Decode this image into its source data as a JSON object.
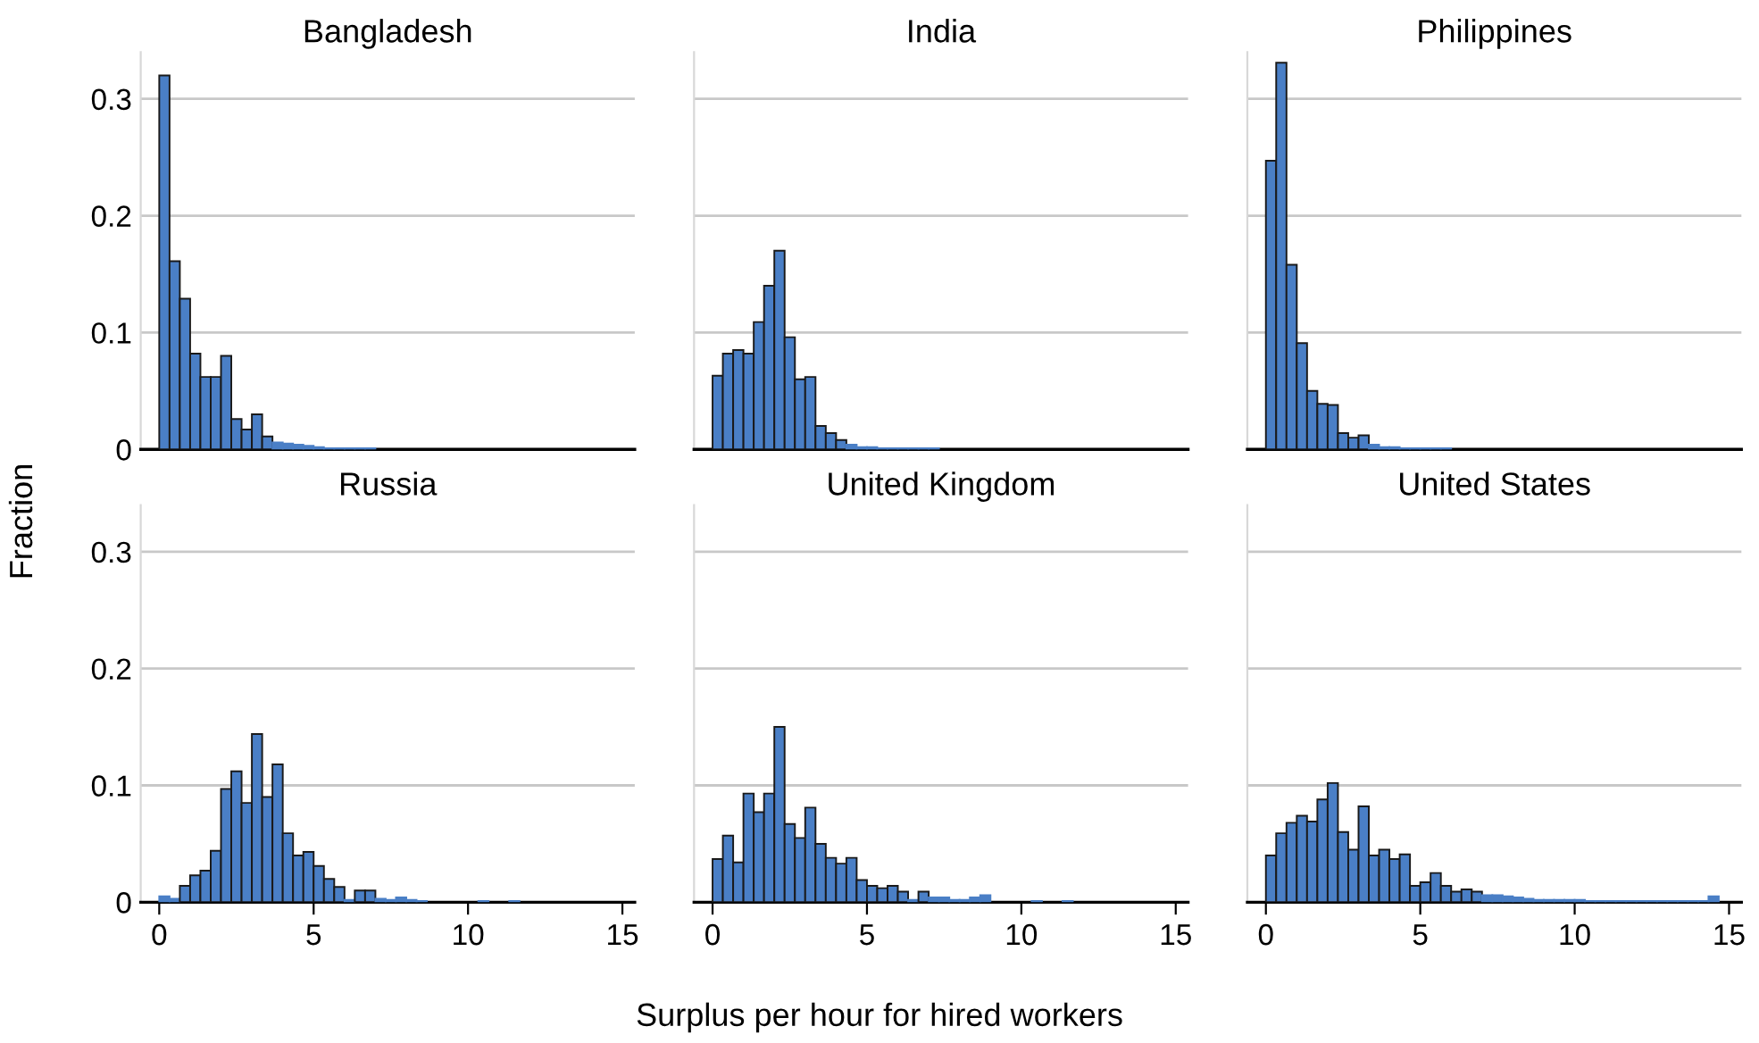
{
  "chart_data": [
    {
      "type": "histogram",
      "title": "Bangladesh",
      "ylabel": "Fraction",
      "color": "#4a7fc6",
      "grid": "y",
      "tick_labels": "y",
      "xlim": [
        -0.6,
        15.4
      ],
      "ylim": [
        0,
        0.34
      ],
      "xticks": [
        0,
        5,
        10,
        15
      ],
      "yticks": [
        0,
        0.1,
        0.2,
        0.3
      ],
      "bins": [
        0,
        0.3333,
        0.6667,
        1,
        1.3333,
        1.6667,
        2,
        2.3333,
        2.6667,
        3,
        3.3333,
        3.6667,
        4,
        4.3333,
        4.6667,
        5,
        5.3333,
        5.6667,
        6,
        6.3333,
        6.6667,
        7,
        7.3333,
        7.6667,
        8,
        8.3333,
        8.6667,
        9,
        9.3333,
        9.6667,
        10,
        10.3333,
        10.6667,
        11,
        11.3333,
        11.6667,
        12,
        12.3333,
        12.6667,
        13,
        13.3333,
        13.6667,
        14,
        14.3333,
        14.6667,
        15
      ],
      "values": [
        0.32,
        0.161,
        0.129,
        0.082,
        0.062,
        0.062,
        0.08,
        0.026,
        0.017,
        0.03,
        0.011,
        0.006,
        0.005,
        0.004,
        0.003,
        0.002,
        0.001,
        0.001,
        0.001,
        0.001,
        0.001,
        0,
        0,
        0,
        0,
        0,
        0,
        0,
        0,
        0,
        0,
        0,
        0,
        0,
        0,
        0,
        0,
        0,
        0,
        0,
        0,
        0,
        0,
        0,
        0
      ]
    },
    {
      "type": "histogram",
      "title": "India",
      "color": "#4a7fc6",
      "grid": "y",
      "tick_labels": false,
      "xlim": [
        -0.6,
        15.4
      ],
      "ylim": [
        0,
        0.34
      ],
      "xticks": [
        0,
        5,
        10,
        15
      ],
      "yticks": [
        0,
        0.1,
        0.2,
        0.3
      ],
      "bins": [
        0,
        0.3333,
        0.6667,
        1,
        1.3333,
        1.6667,
        2,
        2.3333,
        2.6667,
        3,
        3.3333,
        3.6667,
        4,
        4.3333,
        4.6667,
        5,
        5.3333,
        5.6667,
        6,
        6.3333,
        6.6667,
        7,
        7.3333,
        7.6667,
        8,
        8.3333,
        8.6667,
        9,
        9.3333,
        9.6667,
        10,
        10.3333,
        10.6667,
        11,
        11.3333,
        11.6667,
        12,
        12.3333,
        12.6667,
        13,
        13.3333,
        13.6667,
        14,
        14.3333,
        14.6667,
        15
      ],
      "values": [
        0.063,
        0.082,
        0.085,
        0.082,
        0.109,
        0.14,
        0.17,
        0.096,
        0.06,
        0.062,
        0.02,
        0.014,
        0.008,
        0.004,
        0.002,
        0.002,
        0.001,
        0.001,
        0.001,
        0.001,
        0.001,
        0.001,
        0,
        0,
        0,
        0,
        0,
        0,
        0,
        0,
        0,
        0,
        0,
        0,
        0,
        0,
        0,
        0,
        0,
        0,
        0,
        0,
        0,
        0,
        0
      ]
    },
    {
      "type": "histogram",
      "title": "Philippines",
      "color": "#4a7fc6",
      "grid": "y",
      "tick_labels": false,
      "xlim": [
        -0.6,
        15.4
      ],
      "ylim": [
        0,
        0.34
      ],
      "xticks": [
        0,
        5,
        10,
        15
      ],
      "yticks": [
        0,
        0.1,
        0.2,
        0.3
      ],
      "bins": [
        0,
        0.3333,
        0.6667,
        1,
        1.3333,
        1.6667,
        2,
        2.3333,
        2.6667,
        3,
        3.3333,
        3.6667,
        4,
        4.3333,
        4.6667,
        5,
        5.3333,
        5.6667,
        6,
        6.3333,
        6.6667,
        7,
        7.3333,
        7.6667,
        8,
        8.3333,
        8.6667,
        9,
        9.3333,
        9.6667,
        10,
        10.3333,
        10.6667,
        11,
        11.3333,
        11.6667,
        12,
        12.3333,
        12.6667,
        13,
        13.3333,
        13.6667,
        14,
        14.3333,
        14.6667,
        15
      ],
      "values": [
        0.247,
        0.331,
        0.158,
        0.091,
        0.05,
        0.039,
        0.038,
        0.014,
        0.01,
        0.012,
        0.004,
        0.002,
        0.002,
        0.001,
        0.001,
        0.001,
        0.001,
        0.001,
        0,
        0,
        0,
        0,
        0,
        0,
        0,
        0,
        0,
        0,
        0,
        0,
        0,
        0,
        0,
        0,
        0,
        0,
        0,
        0,
        0,
        0,
        0,
        0,
        0,
        0,
        0
      ]
    },
    {
      "type": "histogram",
      "title": "Russia",
      "color": "#4a7fc6",
      "grid": "y",
      "xlim": [
        -0.6,
        15.4
      ],
      "ylim": [
        0,
        0.34
      ],
      "xticks": [
        0,
        5,
        10,
        15
      ],
      "yticks": [
        0,
        0.1,
        0.2,
        0.3
      ],
      "bins": [
        0,
        0.3333,
        0.6667,
        1,
        1.3333,
        1.6667,
        2,
        2.3333,
        2.6667,
        3,
        3.3333,
        3.6667,
        4,
        4.3333,
        4.6667,
        5,
        5.3333,
        5.6667,
        6,
        6.3333,
        6.6667,
        7,
        7.3333,
        7.6667,
        8,
        8.3333,
        8.6667,
        9,
        9.3333,
        9.6667,
        10,
        10.3333,
        10.6667,
        11,
        11.3333,
        11.6667,
        12,
        12.3333,
        12.6667,
        13,
        13.3333,
        13.6667,
        14,
        14.3333,
        14.6667,
        15
      ],
      "values": [
        0.005,
        0.003,
        0.014,
        0.023,
        0.027,
        0.044,
        0.097,
        0.112,
        0.085,
        0.144,
        0.09,
        0.118,
        0.059,
        0.04,
        0.043,
        0.031,
        0.02,
        0.013,
        0.002,
        0.01,
        0.01,
        0.003,
        0.002,
        0.004,
        0.002,
        0.001,
        0,
        0,
        0,
        0,
        0,
        0.001,
        0,
        0,
        0.001,
        0,
        0,
        0,
        0,
        0,
        0,
        0,
        0,
        0,
        0
      ]
    },
    {
      "type": "histogram",
      "title": "United Kingdom",
      "xlabel": "Surplus per hour for hired workers",
      "color": "#4a7fc6",
      "grid": "y",
      "tick_labels": "x",
      "xlim": [
        -0.6,
        15.4
      ],
      "ylim": [
        0,
        0.34
      ],
      "xticks": [
        0,
        5,
        10,
        15
      ],
      "yticks": [
        0,
        0.1,
        0.2,
        0.3
      ],
      "bins": [
        0,
        0.3333,
        0.6667,
        1,
        1.3333,
        1.6667,
        2,
        2.3333,
        2.6667,
        3,
        3.3333,
        3.6667,
        4,
        4.3333,
        4.6667,
        5,
        5.3333,
        5.6667,
        6,
        6.3333,
        6.6667,
        7,
        7.3333,
        7.6667,
        8,
        8.3333,
        8.6667,
        9,
        9.3333,
        9.6667,
        10,
        10.3333,
        10.6667,
        11,
        11.3333,
        11.6667,
        12,
        12.3333,
        12.6667,
        13,
        13.3333,
        13.6667,
        14,
        14.3333,
        14.6667,
        15
      ],
      "values": [
        0.037,
        0.057,
        0.034,
        0.093,
        0.077,
        0.093,
        0.15,
        0.067,
        0.055,
        0.081,
        0.05,
        0.038,
        0.033,
        0.038,
        0.019,
        0.014,
        0.012,
        0.014,
        0.009,
        0.002,
        0.009,
        0.004,
        0.004,
        0.002,
        0.002,
        0.004,
        0.006,
        0,
        0,
        0,
        0,
        0.001,
        0,
        0,
        0.001,
        0,
        0,
        0,
        0,
        0,
        0,
        0,
        0,
        0,
        0
      ]
    },
    {
      "type": "histogram",
      "title": "United States",
      "color": "#4a7fc6",
      "grid": "y",
      "tick_labels": "x",
      "xlim": [
        -0.6,
        15.4
      ],
      "ylim": [
        0,
        0.34
      ],
      "xticks": [
        0,
        5,
        10,
        15
      ],
      "yticks": [
        0,
        0.1,
        0.2,
        0.3
      ],
      "bins": [
        0,
        0.3333,
        0.6667,
        1,
        1.3333,
        1.6667,
        2,
        2.3333,
        2.6667,
        3,
        3.3333,
        3.6667,
        4,
        4.3333,
        4.6667,
        5,
        5.3333,
        5.6667,
        6,
        6.3333,
        6.6667,
        7,
        7.3333,
        7.6667,
        8,
        8.3333,
        8.6667,
        9,
        9.3333,
        9.6667,
        10,
        10.3333,
        10.6667,
        11,
        11.3333,
        11.6667,
        12,
        12.3333,
        12.6667,
        13,
        13.3333,
        13.6667,
        14,
        14.3333,
        14.6667,
        15
      ],
      "values": [
        0.04,
        0.059,
        0.068,
        0.074,
        0.069,
        0.088,
        0.102,
        0.06,
        0.045,
        0.082,
        0.04,
        0.045,
        0.037,
        0.041,
        0.014,
        0.017,
        0.025,
        0.014,
        0.009,
        0.011,
        0.009,
        0.006,
        0.006,
        0.005,
        0.004,
        0.003,
        0.002,
        0.002,
        0.002,
        0.002,
        0.002,
        0.001,
        0.001,
        0.001,
        0.001,
        0.001,
        0.001,
        0.001,
        0.001,
        0.001,
        0.001,
        0.001,
        0.001,
        0.005,
        0
      ]
    }
  ]
}
